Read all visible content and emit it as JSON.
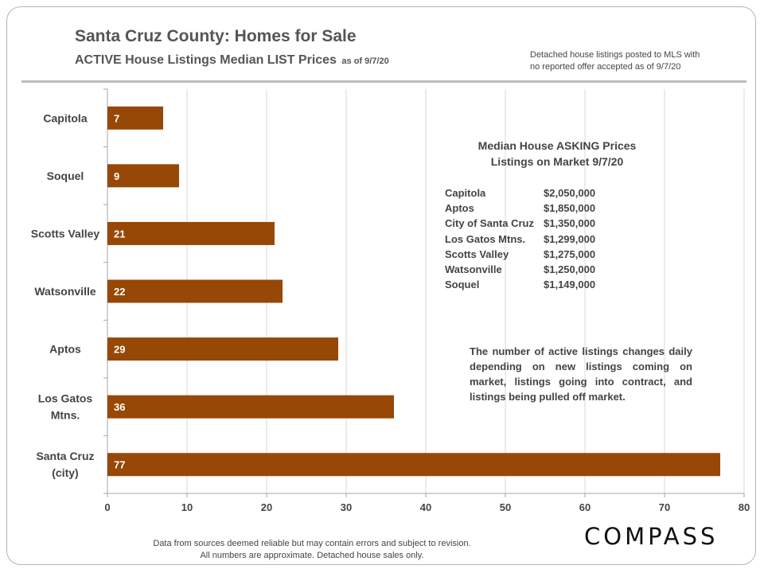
{
  "header": {
    "title": "Santa Cruz County: Homes for Sale",
    "subtitle": "ACTIVE House Listings Median LIST Prices",
    "subtitle_small": "as of 9/7/20",
    "note": "Detached house listings posted to MLS with\nno reported offer accepted as of 9/7/20"
  },
  "chart_data": {
    "type": "bar",
    "orientation": "horizontal",
    "categories": [
      "Capitola",
      "Soquel",
      "Scotts Valley",
      "Watsonville",
      "Aptos",
      "Los Gatos Mtns.",
      "Santa Cruz (city)"
    ],
    "category_lines": [
      [
        "Capitola"
      ],
      [
        "Soquel"
      ],
      [
        "Scotts Valley"
      ],
      [
        "Watsonville"
      ],
      [
        "Aptos"
      ],
      [
        "Los Gatos",
        "Mtns."
      ],
      [
        "Santa Cruz",
        "(city)"
      ]
    ],
    "values": [
      7,
      9,
      21,
      22,
      29,
      36,
      77
    ],
    "xlim": [
      0,
      80
    ],
    "xticks": [
      0,
      10,
      20,
      30,
      40,
      50,
      60,
      70,
      80
    ],
    "grid": true,
    "data_labels": true,
    "colors": {
      "bar": "#974706",
      "grid": "#d9d9d9",
      "axis": "#a6a6a6"
    }
  },
  "overlay": {
    "title_line1": "Median House ASKING Prices",
    "title_line2": "Listings on Market 9/7/20",
    "prices": [
      {
        "name": "Capitola",
        "price": "$2,050,000"
      },
      {
        "name": "Aptos",
        "price": "$1,850,000"
      },
      {
        "name": "City of Santa Cruz",
        "price": "$1,350,000"
      },
      {
        "name": "Los Gatos Mtns.",
        "price": "$1,299,000"
      },
      {
        "name": "Scotts Valley",
        "price": "$1,275,000"
      },
      {
        "name": "Watsonville",
        "price": "$1,250,000"
      },
      {
        "name": "Soquel",
        "price": "$1,149,000"
      }
    ],
    "note": "The number of active listings changes daily depending on new listings coming on market, listings going into contract, and listings being pulled off market."
  },
  "footer": {
    "line1": "Data from sources deemed reliable but  may contain errors and subject to revision.",
    "line2": "All numbers are approximate.  Detached house sales only."
  },
  "logo": {
    "text": "COMPASS"
  }
}
